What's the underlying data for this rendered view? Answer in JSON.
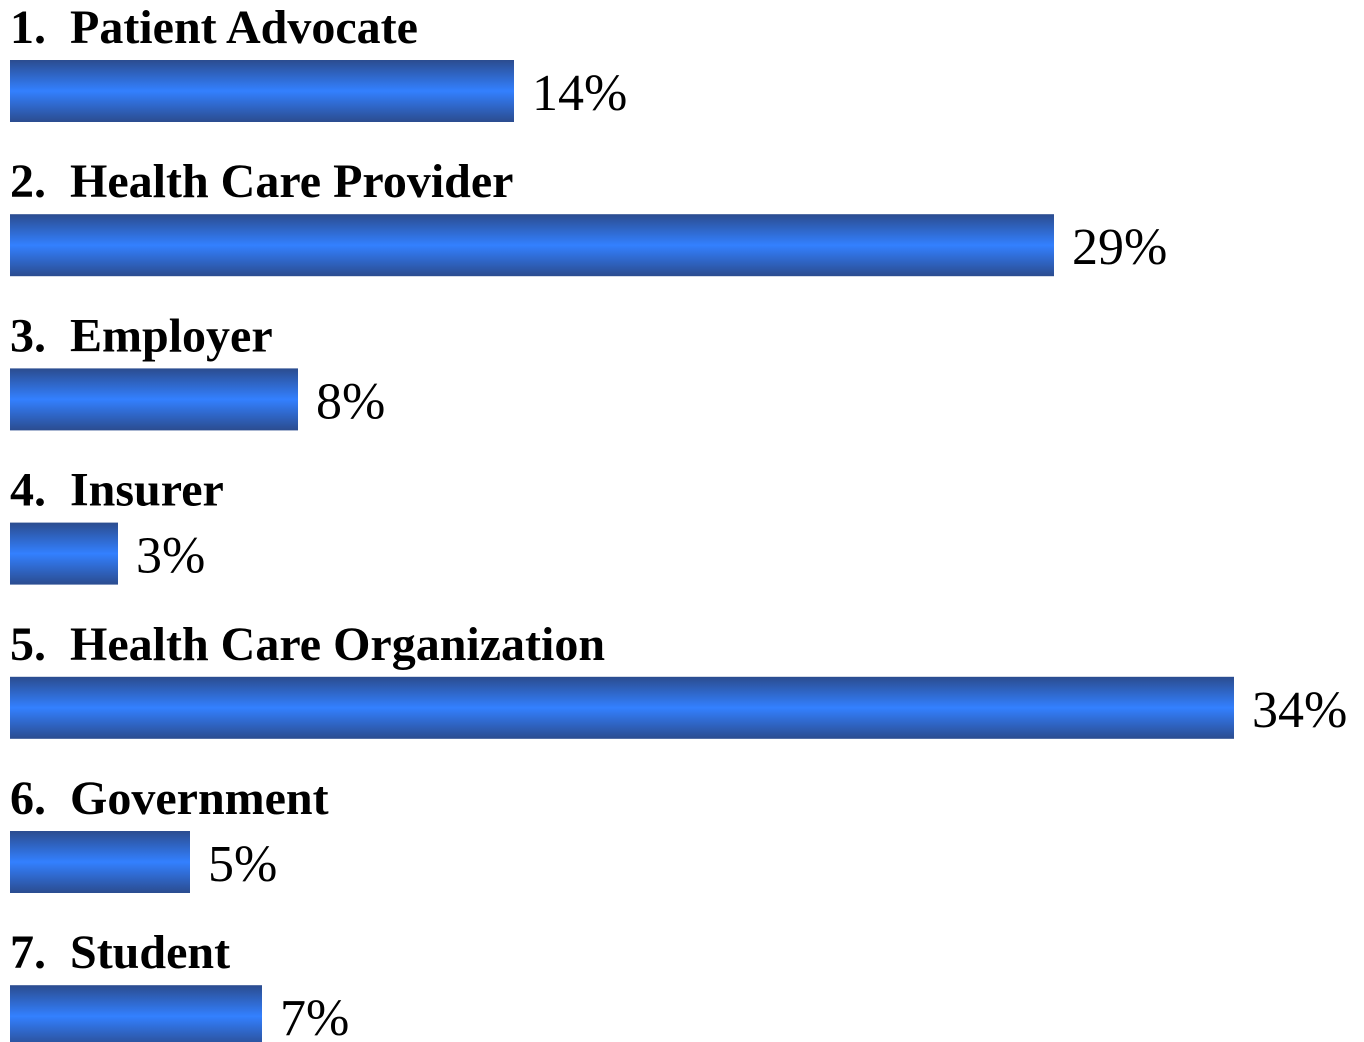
{
  "chart_data": {
    "type": "hbar",
    "categories": [
      "1.  Patient Advocate",
      "2.  Health Care Provider",
      "3.  Employer",
      "4.  Insurer",
      "5.  Health Care Organization",
      "6.  Government",
      "7.  Student"
    ],
    "values": [
      14,
      29,
      8,
      3,
      34,
      5,
      7
    ],
    "value_labels": [
      "14%",
      "29%",
      "8%",
      "3%",
      "34%",
      "5%",
      "7%"
    ],
    "color": "#3380ff"
  }
}
